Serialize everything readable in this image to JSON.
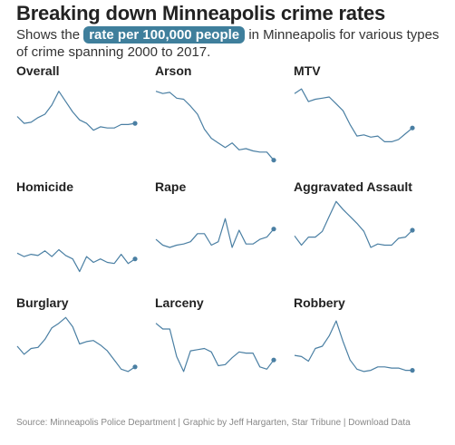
{
  "header": {
    "title": "Breaking down Minneapolis crime rates",
    "subtitle_pre": "Shows the ",
    "subtitle_pill": "rate per 100,000 people",
    "subtitle_post": " in Minneapolis for various types of crime spanning 2000 to 2017."
  },
  "footer": {
    "text": "Source: Minneapolis Police Department | Graphic by Jeff Hargarten, Star Tribune | Download Data"
  },
  "colors": {
    "line": "#4a7fa3",
    "pill": "#3f7f9c"
  },
  "chart_data": [
    {
      "type": "line",
      "title": "Overall",
      "x": [
        2000,
        2001,
        2002,
        2003,
        2004,
        2005,
        2006,
        2007,
        2008,
        2009,
        2010,
        2011,
        2012,
        2013,
        2014,
        2015,
        2016,
        2017
      ],
      "values": [
        68,
        62,
        63,
        67,
        70,
        78,
        90,
        81,
        72,
        65,
        62,
        56,
        59,
        58,
        58,
        61,
        61,
        62
      ]
    },
    {
      "type": "line",
      "title": "Arson",
      "x": [
        2000,
        2001,
        2002,
        2003,
        2004,
        2005,
        2006,
        2007,
        2008,
        2009,
        2010,
        2011,
        2012,
        2013,
        2014,
        2015,
        2016,
        2017
      ],
      "values": [
        90,
        88,
        89,
        84,
        83,
        77,
        70,
        57,
        49,
        45,
        41,
        45,
        39,
        40,
        38,
        37,
        37,
        30
      ]
    },
    {
      "type": "line",
      "title": "MTV",
      "x": [
        2000,
        2001,
        2002,
        2003,
        2004,
        2005,
        2006,
        2007,
        2008,
        2009,
        2010,
        2011,
        2012,
        2013,
        2014,
        2015,
        2016,
        2017
      ],
      "values": [
        88,
        92,
        81,
        83,
        84,
        85,
        79,
        73,
        61,
        51,
        52,
        50,
        51,
        46,
        46,
        48,
        53,
        58
      ]
    },
    {
      "type": "line",
      "title": "Homicide",
      "x": [
        2000,
        2001,
        2002,
        2003,
        2004,
        2005,
        2006,
        2007,
        2008,
        2009,
        2010,
        2011,
        2012,
        2013,
        2014,
        2015,
        2016,
        2017
      ],
      "values": [
        50,
        47,
        49,
        48,
        52,
        47,
        53,
        48,
        45,
        34,
        47,
        42,
        45,
        42,
        41,
        49,
        41,
        45
      ]
    },
    {
      "type": "line",
      "title": "Rape",
      "x": [
        2000,
        2001,
        2002,
        2003,
        2004,
        2005,
        2006,
        2007,
        2008,
        2009,
        2010,
        2011,
        2012,
        2013,
        2014,
        2015,
        2016,
        2017
      ],
      "values": [
        62,
        57,
        55,
        57,
        58,
        60,
        67,
        67,
        57,
        60,
        80,
        55,
        70,
        58,
        58,
        62,
        64,
        71
      ]
    },
    {
      "type": "line",
      "title": "Aggravated Assault",
      "x": [
        2000,
        2001,
        2002,
        2003,
        2004,
        2005,
        2006,
        2007,
        2008,
        2009,
        2010,
        2011,
        2012,
        2013,
        2014,
        2015,
        2016,
        2017
      ],
      "values": [
        65,
        57,
        64,
        64,
        69,
        82,
        95,
        88,
        82,
        76,
        69,
        55,
        58,
        57,
        57,
        63,
        64,
        70
      ]
    },
    {
      "type": "line",
      "title": "Burglary",
      "x": [
        2000,
        2001,
        2002,
        2003,
        2004,
        2005,
        2006,
        2007,
        2008,
        2009,
        2010,
        2011,
        2012,
        2013,
        2014,
        2015,
        2016,
        2017
      ],
      "values": [
        70,
        63,
        68,
        69,
        76,
        86,
        90,
        95,
        87,
        72,
        74,
        75,
        71,
        66,
        58,
        50,
        48,
        52
      ]
    },
    {
      "type": "line",
      "title": "Larceny",
      "x": [
        2000,
        2001,
        2002,
        2003,
        2004,
        2005,
        2006,
        2007,
        2008,
        2009,
        2010,
        2011,
        2012,
        2013,
        2014,
        2015,
        2016,
        2017
      ],
      "values": [
        90,
        85,
        85,
        61,
        48,
        66,
        67,
        68,
        65,
        53,
        54,
        60,
        65,
        64,
        64,
        52,
        50,
        58
      ]
    },
    {
      "type": "line",
      "title": "Robbery",
      "x": [
        2000,
        2001,
        2002,
        2003,
        2004,
        2005,
        2006,
        2007,
        2008,
        2009,
        2010,
        2011,
        2012,
        2013,
        2014,
        2015,
        2016,
        2017
      ],
      "values": [
        62,
        61,
        57,
        68,
        70,
        79,
        92,
        74,
        58,
        50,
        48,
        49,
        52,
        52,
        51,
        51,
        49,
        49
      ]
    }
  ]
}
